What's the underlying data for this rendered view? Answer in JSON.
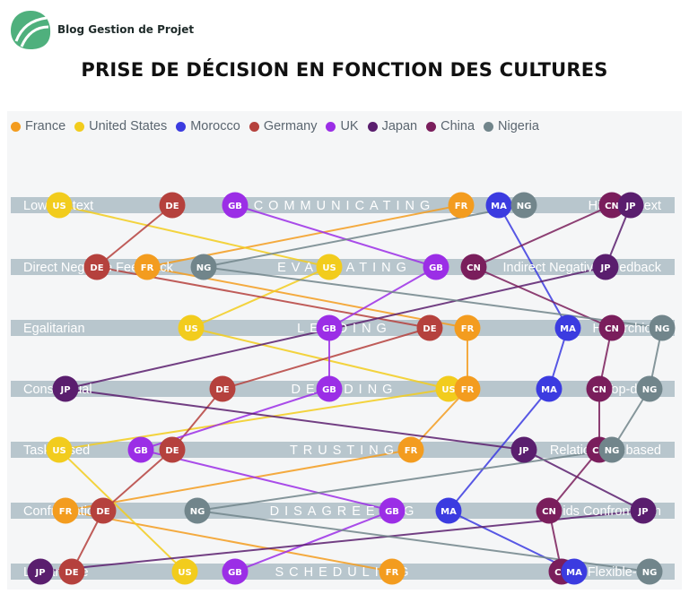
{
  "header": {
    "brand": "Blog Gestion de Projet",
    "title": "PRISE DE DÉCISION EN FONCTION DES CULTURES"
  },
  "countries": [
    {
      "name": "France",
      "code": "FR",
      "color": "#f39c1f"
    },
    {
      "name": "United States",
      "code": "US",
      "color": "#f2cc1d"
    },
    {
      "name": "Morocco",
      "code": "MA",
      "color": "#3b3be0"
    },
    {
      "name": "Germany",
      "code": "DE",
      "color": "#b5413d"
    },
    {
      "name": "UK",
      "code": "GB",
      "color": "#9b2ee6"
    },
    {
      "name": "Japan",
      "code": "JP",
      "color": "#5a1e6e"
    },
    {
      "name": "China",
      "code": "CN",
      "color": "#7a1e5c"
    },
    {
      "name": "Nigeria",
      "code": "NG",
      "color": "#71858b"
    }
  ],
  "scales": [
    {
      "name": "COMMUNICATING",
      "left": "Low-context",
      "right": "High-context",
      "positions": {
        "US": 0.04,
        "DE": 0.22,
        "GB": 0.32,
        "FR": 0.68,
        "MA": 0.74,
        "NG": 0.78,
        "CN": 0.92,
        "JP": 0.95
      }
    },
    {
      "name": "EVALUATING",
      "left": "Direct Negative Feedback",
      "right": "Indirect Negative Feedback",
      "positions": {
        "DE": 0.1,
        "FR": 0.18,
        "NG": 0.27,
        "US": 0.47,
        "GB": 0.64,
        "CN": 0.7,
        "JP": 0.91
      }
    },
    {
      "name": "LEADING",
      "left": "Egalitarian",
      "right": "Hierarchical",
      "positions": {
        "US": 0.25,
        "GB": 0.47,
        "DE": 0.63,
        "FR": 0.69,
        "MA": 0.85,
        "CN": 0.92,
        "NG": 1.0
      }
    },
    {
      "name": "DECIDING",
      "left": "Consensual",
      "right": "Top-down",
      "positions": {
        "JP": 0.05,
        "DE": 0.3,
        "GB": 0.47,
        "US": 0.66,
        "FR": 0.69,
        "MA": 0.82,
        "CN": 0.9,
        "NG": 0.98
      }
    },
    {
      "name": "TRUSTING",
      "left": "Task-based",
      "right": "Relationship-based",
      "positions": {
        "US": 0.04,
        "GB": 0.17,
        "DE": 0.22,
        "FR": 0.6,
        "JP": 0.78,
        "CN": 0.9,
        "NG": 0.92
      }
    },
    {
      "name": "DISAGREEING",
      "left": "Confrontational",
      "right": "Avoids Confrontation",
      "positions": {
        "FR": 0.05,
        "DE": 0.11,
        "NG": 0.26,
        "GB": 0.57,
        "MA": 0.66,
        "CN": 0.82,
        "JP": 0.97
      }
    },
    {
      "name": "SCHEDULING",
      "left": "Linear-time",
      "right": "Flexible-time",
      "positions": {
        "JP": 0.01,
        "DE": 0.06,
        "US": 0.24,
        "GB": 0.32,
        "FR": 0.57,
        "CN": 0.84,
        "MA": 0.86,
        "NG": 0.98
      }
    }
  ]
}
